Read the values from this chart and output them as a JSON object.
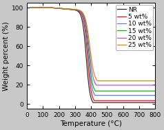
{
  "title": "",
  "xlabel": "Temperature (°C)",
  "ylabel": "Weight percent (%)",
  "xlim": [
    0,
    800
  ],
  "ylim": [
    -5,
    105
  ],
  "xticks": [
    0,
    100,
    200,
    300,
    400,
    500,
    600,
    700,
    800
  ],
  "yticks": [
    0,
    20,
    40,
    60,
    80,
    100
  ],
  "series": [
    {
      "label": "NR",
      "color": "#222222",
      "residue": 2.5,
      "onset": 310,
      "mid": 370,
      "slope": 12
    },
    {
      "label": "5 wt%",
      "color": "#ff0000",
      "residue": 4.5,
      "onset": 320,
      "mid": 378,
      "slope": 12
    },
    {
      "label": "10 wt%",
      "color": "#5577ff",
      "residue": 10.0,
      "onset": 325,
      "mid": 382,
      "slope": 12
    },
    {
      "label": "15 wt%",
      "color": "#00bb00",
      "residue": 14.5,
      "onset": 328,
      "mid": 385,
      "slope": 12
    },
    {
      "label": "20 wt%",
      "color": "#bb44ee",
      "residue": 20.5,
      "onset": 330,
      "mid": 388,
      "slope": 13
    },
    {
      "label": "25 wt%",
      "color": "#cc8800",
      "residue": 25.0,
      "onset": 332,
      "mid": 392,
      "slope": 14
    }
  ],
  "background_color": "#c8c8c8",
  "axes_bg_color": "#ffffff",
  "legend_fontsize": 6.5,
  "axis_fontsize": 7.5,
  "tick_fontsize": 6.5
}
